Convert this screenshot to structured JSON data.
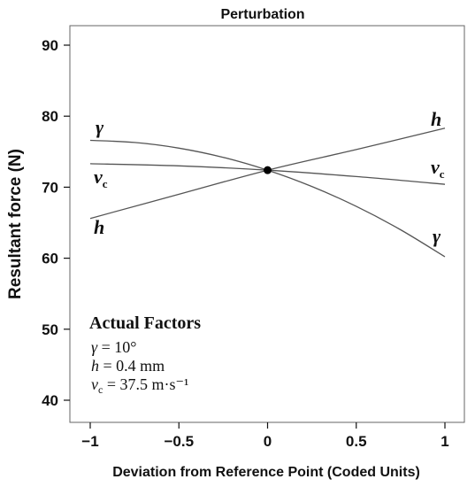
{
  "chart_data": {
    "type": "line",
    "title": "Perturbation",
    "xlabel": "Deviation from Reference Point (Coded Units)",
    "ylabel": "Resultant force (N)",
    "xlim": [
      -1,
      1
    ],
    "ylim": [
      37,
      93
    ],
    "x_ticks": [
      -1,
      -0.5,
      0,
      0.5,
      1
    ],
    "x_tick_labels": [
      "−1",
      "−0.5",
      "0",
      "0.5",
      "1"
    ],
    "y_ticks": [
      40,
      50,
      60,
      70,
      80,
      90
    ],
    "y_tick_labels": [
      "40",
      "50",
      "60",
      "70",
      "80",
      "90"
    ],
    "grid": false,
    "series": [
      {
        "name": "γ",
        "x": [
          -1,
          -0.75,
          -0.5,
          -0.25,
          0,
          0.25,
          0.5,
          0.75,
          1
        ],
        "values": [
          76.6,
          76.3,
          75.5,
          74.2,
          72.4,
          70.1,
          67.3,
          64.0,
          60.2
        ]
      },
      {
        "name": "h",
        "x": [
          -1,
          -0.5,
          0,
          0.5,
          1
        ],
        "values": [
          65.6,
          69.0,
          72.4,
          75.3,
          78.3
        ]
      },
      {
        "name": "v_c",
        "x": [
          -1,
          -0.5,
          0,
          0.5,
          1
        ],
        "values": [
          73.3,
          73.0,
          72.4,
          71.5,
          70.4
        ]
      }
    ],
    "reference_point": {
      "x": 0,
      "y": 72.4
    },
    "series_labels": [
      {
        "series": "γ",
        "end": "left",
        "text": "γ"
      },
      {
        "series": "h",
        "end": "left",
        "text": "h"
      },
      {
        "series": "v_c",
        "end": "left",
        "text": "v",
        "sub": "c"
      },
      {
        "series": "h",
        "end": "right",
        "text": "h"
      },
      {
        "series": "v_c",
        "end": "right",
        "text": "v",
        "sub": "c"
      },
      {
        "series": "γ",
        "end": "right",
        "text": "γ"
      }
    ],
    "annotation": {
      "heading": "Actual Factors",
      "lines": [
        {
          "sym": "γ",
          "sub": "",
          "rest": " = 10°"
        },
        {
          "sym": "h",
          "sub": "",
          "rest": " = 0.4 mm"
        },
        {
          "sym": "v",
          "sub": "c",
          "rest": " = 37.5 m·s⁻¹"
        }
      ]
    }
  }
}
